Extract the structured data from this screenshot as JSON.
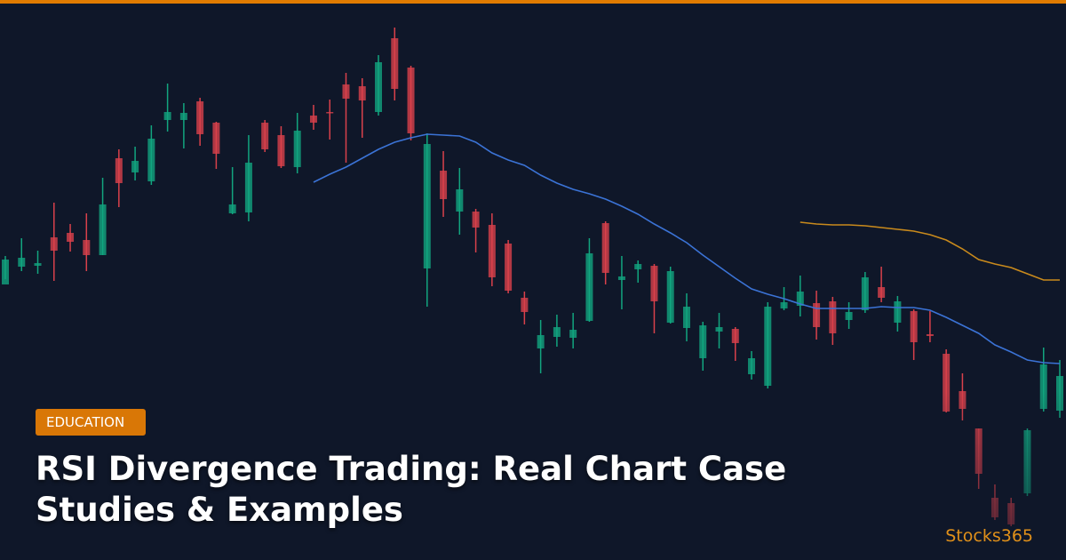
{
  "badge": "EDUCATION",
  "title": "RSI Divergence Trading: Real Chart Case Studies & Examples",
  "brand": "Stocks365",
  "chart_data": {
    "type": "candlestick",
    "categories": [
      null,
      null,
      null,
      null,
      null,
      null,
      null,
      null,
      null,
      null,
      null,
      null,
      null,
      null,
      null,
      null,
      null,
      null,
      null,
      null,
      null,
      null,
      null,
      null,
      null,
      null,
      null,
      null,
      null,
      null,
      null,
      null,
      null,
      null,
      null,
      null,
      null,
      null,
      null,
      null,
      null,
      null,
      null,
      null,
      null,
      null,
      null,
      null,
      null,
      null,
      null,
      null,
      null,
      null,
      null,
      null,
      null,
      null,
      null,
      null,
      null,
      null,
      null,
      null,
      null,
      null
    ],
    "open": [
      31.0,
      33.0,
      33.1,
      36.3,
      36.8,
      36.0,
      34.3,
      45.2,
      43.6,
      42.6,
      49.5,
      49.5,
      51.6,
      49.2,
      39.0,
      39.1,
      49.2,
      47.8,
      44.2,
      50.0,
      50.4,
      53.5,
      53.3,
      50.4,
      58.7,
      55.4,
      32.8,
      43.8,
      39.2,
      39.2,
      37.7,
      35.6,
      29.5,
      23.8,
      25.1,
      25.0,
      26.9,
      37.9,
      31.5,
      32.7,
      33.1,
      26.7,
      26.1,
      22.7,
      25.7,
      26.0,
      20.9,
      19.6,
      28.3,
      28.6,
      28.9,
      29.1,
      27.0,
      28.1,
      30.7,
      26.7,
      28.0,
      25.4,
      23.2,
      19.0,
      14.8,
      7.0,
      6.4,
      7.5,
      17.0,
      16.8
    ],
    "high": [
      34.2,
      36.2,
      34.8,
      40.2,
      37.8,
      39.0,
      43.0,
      46.2,
      46.5,
      48.9,
      53.6,
      51.4,
      52.0,
      49.3,
      44.2,
      47.8,
      49.5,
      48.8,
      50.3,
      51.2,
      51.8,
      54.8,
      54.2,
      56.8,
      59.9,
      55.6,
      48.0,
      46.0,
      44.1,
      39.5,
      39.0,
      36.0,
      30.2,
      27.0,
      27.6,
      27.8,
      36.2,
      38.1,
      34.2,
      33.7,
      33.3,
      33.0,
      30.0,
      26.8,
      27.8,
      26.2,
      23.5,
      29.0,
      30.7,
      32.0,
      30.3,
      29.6,
      29.0,
      32.4,
      33.0,
      29.7,
      28.2,
      28.0,
      23.7,
      21.0,
      14.8,
      8.5,
      7.0,
      14.8,
      23.9,
      22.5
    ],
    "low": [
      31.6,
      32.5,
      32.2,
      31.4,
      34.7,
      32.5,
      34.3,
      39.7,
      42.7,
      42.2,
      48.2,
      46.3,
      46.6,
      44.0,
      38.9,
      38.1,
      45.9,
      44.1,
      43.5,
      48.4,
      47.3,
      44.7,
      47.5,
      50.0,
      51.7,
      47.2,
      28.5,
      38.6,
      36.6,
      34.6,
      30.8,
      30.0,
      26.5,
      21.0,
      24.0,
      23.8,
      26.8,
      31.0,
      28.2,
      31.2,
      25.5,
      26.6,
      24.6,
      21.3,
      23.8,
      22.4,
      20.3,
      19.3,
      28.1,
      27.4,
      24.8,
      24.2,
      26.0,
      27.8,
      29.0,
      25.7,
      22.5,
      24.5,
      16.6,
      15.7,
      8.0,
      4.5,
      3.8,
      7.2,
      16.7,
      16.0
    ],
    "close": [
      33.8,
      34.0,
      33.4,
      34.8,
      35.8,
      34.3,
      40.0,
      42.4,
      44.9,
      47.4,
      50.4,
      50.3,
      47.9,
      45.7,
      40.0,
      44.7,
      46.2,
      44.3,
      48.3,
      49.2,
      50.3,
      51.9,
      51.7,
      56.0,
      53.0,
      48.0,
      46.8,
      40.6,
      41.7,
      37.4,
      31.8,
      30.3,
      27.9,
      25.3,
      26.2,
      25.9,
      34.5,
      32.3,
      31.9,
      33.3,
      29.1,
      32.5,
      28.5,
      26.4,
      26.2,
      24.4,
      22.7,
      28.5,
      29.0,
      30.2,
      26.2,
      25.5,
      27.9,
      31.8,
      29.5,
      29.1,
      24.5,
      25.2,
      16.7,
      17.0,
      9.7,
      4.8,
      4.0,
      14.6,
      22.0,
      20.7
    ],
    "up_color": "#12a57f",
    "down_color": "#d9414b",
    "lines": [
      {
        "color": "#3b73d6",
        "values": [
          null,
          null,
          null,
          null,
          null,
          null,
          null,
          null,
          null,
          null,
          null,
          null,
          null,
          null,
          null,
          null,
          null,
          null,
          null,
          42.5,
          43.4,
          44.2,
          45.2,
          46.2,
          47.0,
          47.5,
          47.9,
          47.8,
          47.7,
          47.0,
          45.8,
          45.0,
          44.4,
          43.3,
          42.4,
          41.7,
          41.2,
          40.6,
          39.8,
          38.9,
          37.8,
          36.8,
          35.7,
          34.3,
          33.0,
          31.7,
          30.5,
          29.9,
          29.4,
          28.8,
          28.3,
          28.3,
          28.3,
          28.3,
          28.5,
          28.4,
          28.4,
          28.1,
          27.3,
          26.4,
          25.5,
          24.2,
          23.4,
          22.5,
          22.2,
          22.1
        ]
      },
      {
        "color": "#c98a1c",
        "values": [
          null,
          null,
          null,
          null,
          null,
          null,
          null,
          null,
          null,
          null,
          null,
          null,
          null,
          null,
          null,
          null,
          null,
          null,
          null,
          null,
          null,
          null,
          null,
          null,
          null,
          null,
          null,
          null,
          null,
          null,
          null,
          null,
          null,
          null,
          null,
          null,
          null,
          null,
          null,
          null,
          null,
          null,
          null,
          null,
          null,
          null,
          null,
          null,
          null,
          38.0,
          37.8,
          37.7,
          37.7,
          37.6,
          37.4,
          37.2,
          37.0,
          36.6,
          36.0,
          35.0,
          33.8,
          33.3,
          32.9,
          32.2,
          31.5,
          31.5
        ]
      }
    ],
    "ylim": [
      0,
      63
    ]
  }
}
